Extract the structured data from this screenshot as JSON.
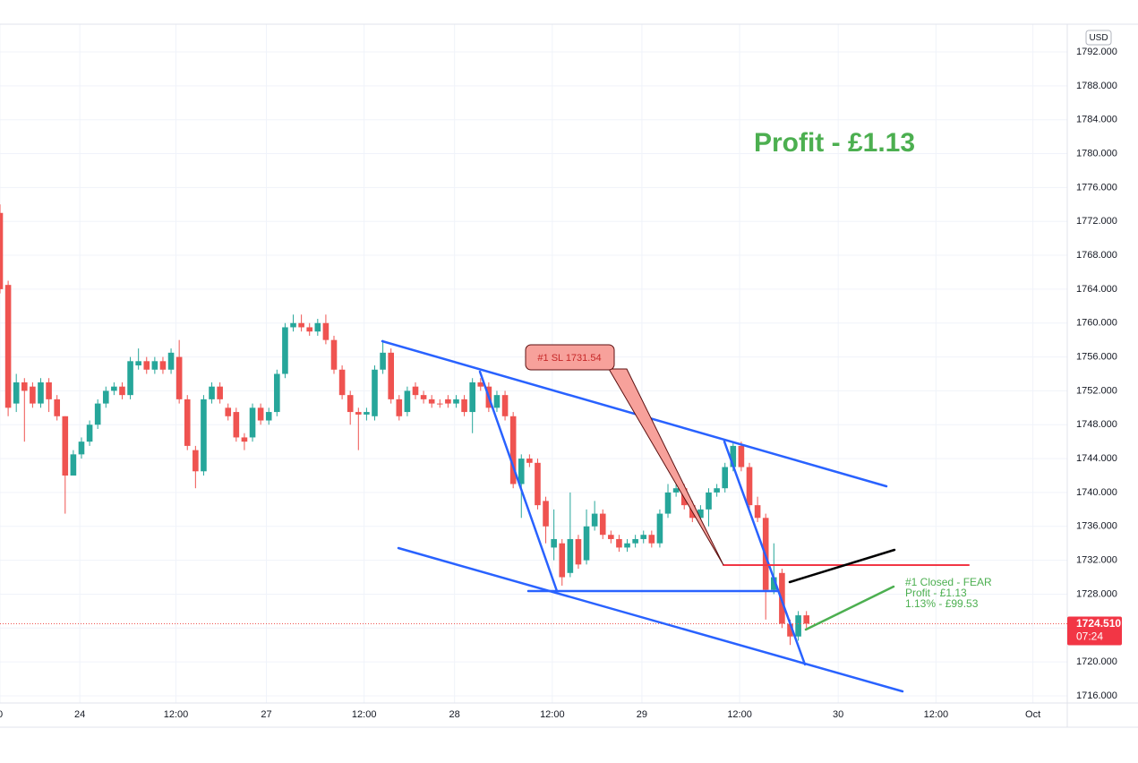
{
  "chart_data": {
    "type": "candlestick",
    "currency": "USD",
    "up_color": "#26a69a",
    "down_color": "#ef5350",
    "x": [
      0,
      1,
      2,
      3,
      4,
      5,
      6,
      7,
      8,
      9,
      10,
      11,
      12,
      13,
      14,
      15,
      16,
      17,
      18,
      19,
      20,
      21,
      22,
      23,
      24,
      25,
      26,
      27,
      28,
      29,
      30,
      31,
      32,
      33,
      34,
      35,
      36,
      37,
      38,
      39,
      40,
      41,
      42,
      43,
      44,
      45,
      46,
      47,
      48,
      49,
      50,
      51,
      52,
      53,
      54,
      55,
      56,
      57,
      58,
      59,
      60,
      61,
      62,
      63,
      64,
      65,
      66,
      67,
      68,
      69,
      70,
      71,
      72,
      73,
      74,
      75,
      76,
      77,
      78,
      79,
      80,
      81,
      82,
      83,
      84,
      85,
      86,
      87,
      88,
      89,
      90,
      91,
      92,
      93,
      94,
      95,
      96,
      97,
      98,
      99
    ],
    "open": [
      1773,
      1764.5,
      1750.5,
      1753,
      1752.5,
      1750.5,
      1753,
      1751,
      1749,
      1742,
      1744.5,
      1746,
      1748,
      1750.5,
      1752,
      1752.5,
      1751.5,
      1755,
      1755.5,
      1754.5,
      1755.5,
      1754.5,
      1756,
      1751,
      1745,
      1742.5,
      1751,
      1752.5,
      1750,
      1749.5,
      1746.5,
      1746.5,
      1750,
      1748.5,
      1749.5,
      1754,
      1759.5,
      1760,
      1759.5,
      1759,
      1760,
      1758,
      1754.5,
      1751.5,
      1749.5,
      1749.2,
      1749,
      1754.5,
      1756.5,
      1751,
      1749.5,
      1752.5,
      1751.5,
      1751,
      1750.5,
      1751,
      1750.5,
      1751,
      1749.5,
      1753,
      1752.5,
      1750,
      1751.5,
      1749,
      1741,
      1744,
      1743.5,
      1739,
      1733.5,
      1734,
      1730.5,
      1734.5,
      1732,
      1736,
      1737.5,
      1735,
      1734.5,
      1733.5,
      1734,
      1734.5,
      1735,
      1734,
      1737.5,
      1740,
      1740.5,
      1738.5,
      1737,
      1738,
      1740,
      1740.5,
      1743,
      1745.5,
      1743,
      1738.5,
      1737,
      1728.5,
      1730.5,
      1724.5,
      1723,
      1725.5
    ],
    "high": [
      1774,
      1765,
      1754,
      1753.5,
      1753,
      1753.5,
      1753.5,
      1751.5,
      1749,
      1745,
      1746.5,
      1748.5,
      1751,
      1752.5,
      1753,
      1753,
      1756,
      1757,
      1756,
      1756,
      1756,
      1757,
      1758,
      1751.5,
      1745.5,
      1751.5,
      1753,
      1753,
      1750.5,
      1750,
      1747,
      1750.5,
      1750.5,
      1750,
      1754.5,
      1760,
      1761,
      1761,
      1760,
      1760.5,
      1761,
      1758.5,
      1755,
      1752,
      1750,
      1750,
      1755,
      1758,
      1757,
      1751.5,
      1752.5,
      1753,
      1752,
      1751.5,
      1751,
      1751.5,
      1751.5,
      1751.5,
      1753.5,
      1753.5,
      1753,
      1752,
      1752,
      1749.5,
      1744.5,
      1744.5,
      1744,
      1739.5,
      1738,
      1734.5,
      1740,
      1735,
      1738,
      1739,
      1738,
      1735.5,
      1735,
      1734.5,
      1735,
      1735.5,
      1735.5,
      1738,
      1741,
      1741.5,
      1741,
      1739,
      1738.5,
      1740.5,
      1741,
      1743.5,
      1746,
      1746,
      1743.5,
      1739.5,
      1737.5,
      1734,
      1731,
      1725,
      1726,
      1726
    ],
    "low": [
      1763.5,
      1749,
      1749.5,
      1746,
      1750,
      1750,
      1749.5,
      1748.5,
      1737.5,
      1742,
      1744,
      1745.5,
      1747.5,
      1750,
      1751.5,
      1751,
      1751,
      1754.5,
      1754,
      1754,
      1754,
      1754,
      1750.5,
      1745,
      1740.5,
      1742,
      1750.5,
      1750.5,
      1748.5,
      1746,
      1745,
      1746,
      1748,
      1748,
      1749,
      1753.5,
      1759,
      1759,
      1758.5,
      1758.5,
      1757.5,
      1754,
      1751,
      1748,
      1745,
      1748.5,
      1748.5,
      1754,
      1750.5,
      1748.5,
      1749,
      1751,
      1750.5,
      1750,
      1750,
      1750,
      1750,
      1749,
      1747,
      1752,
      1749.5,
      1749.5,
      1748.5,
      1740.5,
      1737,
      1743,
      1738,
      1734,
      1732,
      1729,
      1730,
      1731,
      1731.5,
      1735.5,
      1734.5,
      1734,
      1733,
      1733,
      1733.5,
      1734,
      1733.5,
      1733.5,
      1737,
      1739.5,
      1738,
      1736.5,
      1736.5,
      1736,
      1739.5,
      1740,
      1742.5,
      1742.5,
      1738,
      1736.5,
      1725,
      1728,
      1724,
      1722,
      1722.5,
      1724
    ],
    "close": [
      1764,
      1750,
      1753,
      1752,
      1750.5,
      1753,
      1751,
      1749,
      1742,
      1744.5,
      1746,
      1748,
      1750.5,
      1752,
      1752.5,
      1751.5,
      1755.5,
      1755.5,
      1754.5,
      1755.5,
      1754.5,
      1756.5,
      1751,
      1745.5,
      1742.5,
      1751,
      1752.5,
      1751,
      1749,
      1746.5,
      1746,
      1750,
      1748.5,
      1749.5,
      1754,
      1759.5,
      1760,
      1759.5,
      1759,
      1760,
      1758,
      1754.5,
      1751.5,
      1749.5,
      1749.2,
      1749.5,
      1754.5,
      1756.5,
      1751,
      1749,
      1752,
      1751.5,
      1751,
      1750.5,
      1750.4,
      1750.5,
      1751,
      1749.5,
      1753,
      1752.5,
      1750,
      1751.5,
      1749,
      1741,
      1744,
      1743.5,
      1738.5,
      1736,
      1734.5,
      1730,
      1734.5,
      1731.5,
      1736,
      1737.5,
      1735,
      1734.5,
      1733.5,
      1734,
      1734.5,
      1735,
      1734,
      1737.5,
      1740,
      1740.5,
      1738.5,
      1737,
      1738,
      1740,
      1740.5,
      1743,
      1745.5,
      1743,
      1738.5,
      1737,
      1728.5,
      1730,
      1724.5,
      1723,
      1725.5,
      1724.51
    ],
    "xlim": [
      0,
      130.8
    ],
    "xticks": [
      {
        "value": 0,
        "label": "0"
      },
      {
        "value": 9.8,
        "label": "24"
      },
      {
        "value": 21.6,
        "label": "12:00"
      },
      {
        "value": 32.7,
        "label": "27"
      },
      {
        "value": 44.7,
        "label": "12:00"
      },
      {
        "value": 55.8,
        "label": "28"
      },
      {
        "value": 67.8,
        "label": "12:00"
      },
      {
        "value": 78.8,
        "label": "29"
      },
      {
        "value": 90.8,
        "label": "12:00"
      },
      {
        "value": 102.9,
        "label": "30"
      },
      {
        "value": 114.9,
        "label": "12:00"
      },
      {
        "value": 126.8,
        "label": "Oct"
      }
    ],
    "ylim": [
      1715.15,
      1795.28
    ],
    "yticks": [
      {
        "value": 1716,
        "label": "1716.000"
      },
      {
        "value": 1720,
        "label": "1720.000"
      },
      {
        "value": 1724,
        "label": "1724.000"
      },
      {
        "value": 1728,
        "label": "1728.000"
      },
      {
        "value": 1732,
        "label": "1732.000"
      },
      {
        "value": 1736,
        "label": "1736.000"
      },
      {
        "value": 1740,
        "label": "1740.000"
      },
      {
        "value": 1744,
        "label": "1744.000"
      },
      {
        "value": 1748,
        "label": "1748.000"
      },
      {
        "value": 1752,
        "label": "1752.000"
      },
      {
        "value": 1756,
        "label": "1756.000"
      },
      {
        "value": 1760,
        "label": "1760.000"
      },
      {
        "value": 1764,
        "label": "1764.000"
      },
      {
        "value": 1768,
        "label": "1768.000"
      },
      {
        "value": 1772,
        "label": "1772.000"
      },
      {
        "value": 1776,
        "label": "1776.000"
      },
      {
        "value": 1780,
        "label": "1780.000"
      },
      {
        "value": 1784,
        "label": "1784.000"
      },
      {
        "value": 1788,
        "label": "1788.000"
      },
      {
        "value": 1792,
        "label": "1792.000"
      }
    ],
    "grid": true,
    "last_price": {
      "value": 1724.51,
      "label": "1724.510"
    },
    "countdown": "07:24",
    "annotations": {
      "profit_headline": "Profit - £1.13",
      "stop_loss": "#1 SL 1731.54",
      "closed_note": [
        "#1 Closed - FEAR",
        "Profit - £1.13",
        "1.13% - £99.53"
      ]
    }
  }
}
